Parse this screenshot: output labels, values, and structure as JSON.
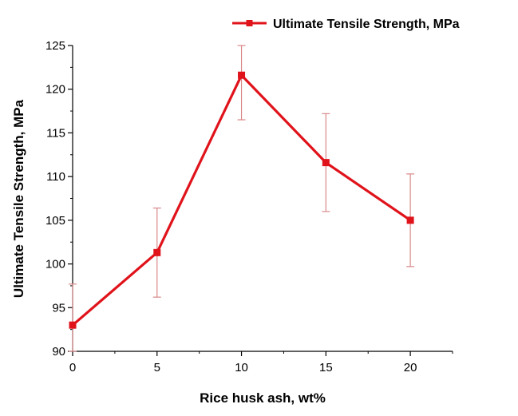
{
  "chart_data": {
    "type": "line",
    "title": "",
    "xlabel": "Rice husk ash, wt%",
    "ylabel": "Ultimate Tensile Strength, MPa",
    "xlim": [
      0,
      22.5
    ],
    "ylim": [
      90,
      125
    ],
    "xticks": [
      0,
      5,
      10,
      15,
      20
    ],
    "yticks": [
      90,
      95,
      100,
      105,
      110,
      115,
      120,
      125
    ],
    "grid": false,
    "legend_position": "top-right",
    "series": [
      {
        "name": "Ultimate Tensile Strength, MPa",
        "color": "#e0131b",
        "marker": "square",
        "x": [
          0,
          5,
          10,
          15,
          20
        ],
        "values": [
          93,
          101.3,
          121.6,
          111.6,
          105
        ],
        "error": [
          4.7,
          5.1,
          5.1,
          5.6,
          5.3
        ]
      }
    ],
    "errorbar_color": "#d9888a"
  }
}
